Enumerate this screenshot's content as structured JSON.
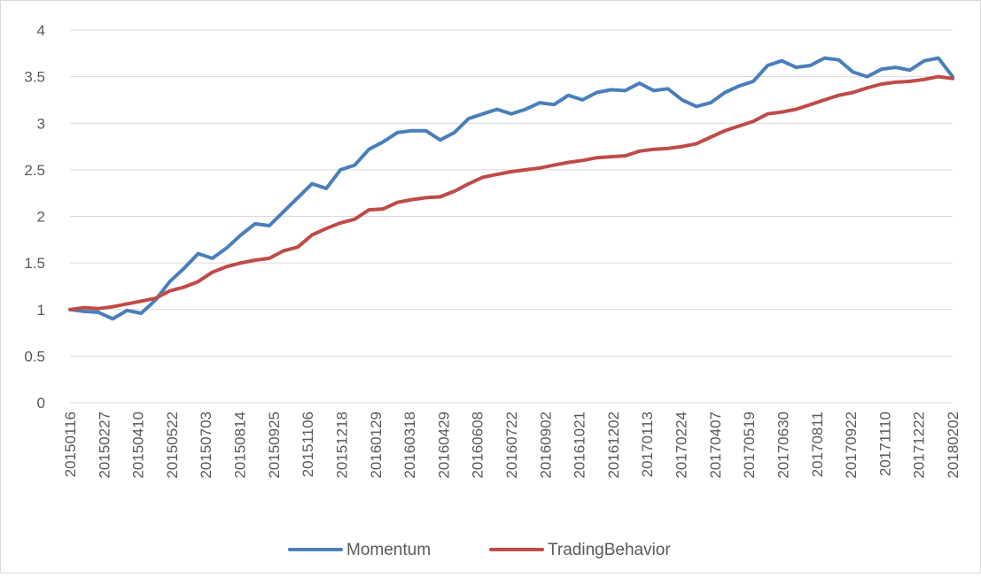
{
  "chart_data": {
    "type": "line",
    "title": "",
    "xlabel": "",
    "ylabel": "",
    "ylim": [
      0,
      4
    ],
    "yticks": [
      0,
      0.5,
      1,
      1.5,
      2,
      2.5,
      3,
      3.5,
      4
    ],
    "ytick_labels": [
      "0",
      "0.5",
      "1",
      "1.5",
      "2",
      "2.5",
      "3",
      "3.5",
      "4"
    ],
    "grid": "horizontal",
    "legend_position": "bottom",
    "x_tick_labels": [
      "20150116",
      "20150227",
      "20150410",
      "20150522",
      "20150703",
      "20150814",
      "20150925",
      "20151106",
      "20151218",
      "20160129",
      "20160318",
      "20160429",
      "20160608",
      "20160722",
      "20160902",
      "20161021",
      "20161202",
      "20170113",
      "20170224",
      "20170407",
      "20170519",
      "20170630",
      "20170811",
      "20170922",
      "20171110",
      "20171222",
      "20180202"
    ],
    "series": [
      {
        "name": "Momentum",
        "color": "#4a7ebb",
        "values": [
          1.0,
          0.98,
          0.97,
          0.9,
          0.99,
          0.96,
          1.1,
          1.3,
          1.44,
          1.6,
          1.55,
          1.66,
          1.8,
          1.92,
          1.9,
          2.05,
          2.2,
          2.35,
          2.3,
          2.5,
          2.55,
          2.72,
          2.8,
          2.9,
          2.92,
          2.92,
          2.82,
          2.9,
          3.05,
          3.1,
          3.15,
          3.1,
          3.15,
          3.22,
          3.2,
          3.3,
          3.25,
          3.33,
          3.36,
          3.35,
          3.43,
          3.35,
          3.37,
          3.25,
          3.18,
          3.22,
          3.33,
          3.4,
          3.45,
          3.62,
          3.67,
          3.6,
          3.62,
          3.7,
          3.68,
          3.55,
          3.5,
          3.58,
          3.6,
          3.57,
          3.67,
          3.7,
          3.5
        ]
      },
      {
        "name": "TradingBehavior",
        "color": "#be4b48",
        "values": [
          1.0,
          1.02,
          1.01,
          1.03,
          1.06,
          1.09,
          1.12,
          1.2,
          1.24,
          1.3,
          1.4,
          1.46,
          1.5,
          1.53,
          1.55,
          1.63,
          1.67,
          1.8,
          1.87,
          1.93,
          1.97,
          2.07,
          2.08,
          2.15,
          2.18,
          2.2,
          2.21,
          2.27,
          2.35,
          2.42,
          2.45,
          2.48,
          2.5,
          2.52,
          2.55,
          2.58,
          2.6,
          2.63,
          2.64,
          2.65,
          2.7,
          2.72,
          2.73,
          2.75,
          2.78,
          2.85,
          2.92,
          2.97,
          3.02,
          3.1,
          3.12,
          3.15,
          3.2,
          3.25,
          3.3,
          3.33,
          3.38,
          3.42,
          3.44,
          3.45,
          3.47,
          3.5,
          3.48
        ]
      }
    ]
  }
}
